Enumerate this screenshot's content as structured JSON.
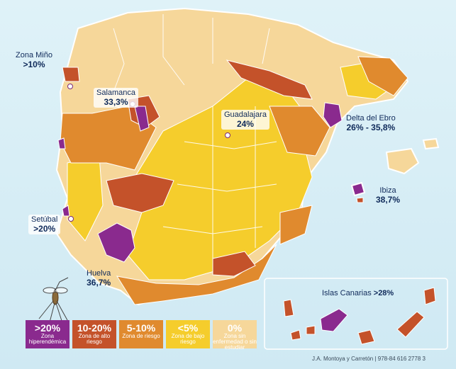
{
  "colors": {
    "hyper": "#8a2a8e",
    "high": "#c4522a",
    "medium": "#e08a2e",
    "low": "#f5cd2c",
    "none": "#f6d79a",
    "border": "#ffffff",
    "sea": "#d8eef6"
  },
  "labels": {
    "mino": {
      "name": "Zona Miño",
      "value": ">10%"
    },
    "salamanca": {
      "name": "Salamanca",
      "value": "33,3%"
    },
    "guadalajara": {
      "name": "Guadalajara",
      "value": "24%"
    },
    "delta": {
      "name": "Delta del Ebro",
      "value": "26% - 35,8%"
    },
    "ibiza": {
      "name": "Ibiza",
      "value": "38,7%"
    },
    "setubal": {
      "name": "Setúbal",
      "value": ">20%"
    },
    "huelva": {
      "name": "Huelva",
      "value": "36,7%"
    },
    "canarias": {
      "name": "Islas Canarias",
      "value": ">28%"
    }
  },
  "legend": [
    {
      "pct": ">20%",
      "desc": "Zona hiperendémica",
      "color": "#8a2a8e"
    },
    {
      "pct": "10-20%",
      "desc": "Zona de alto riesgo",
      "color": "#c4522a"
    },
    {
      "pct": "5-10%",
      "desc": "Zona de riesgo",
      "color": "#e08a2e"
    },
    {
      "pct": "<5%",
      "desc": "Zona de bajo riesgo",
      "color": "#f5cd2c"
    },
    {
      "pct": "0%",
      "desc": "Zona sin enfermedad o sin estudiar",
      "color": "#f6d79a"
    }
  ],
  "credit": "J.A. Montoya y Carretón  |  978-84 616 2778 3"
}
